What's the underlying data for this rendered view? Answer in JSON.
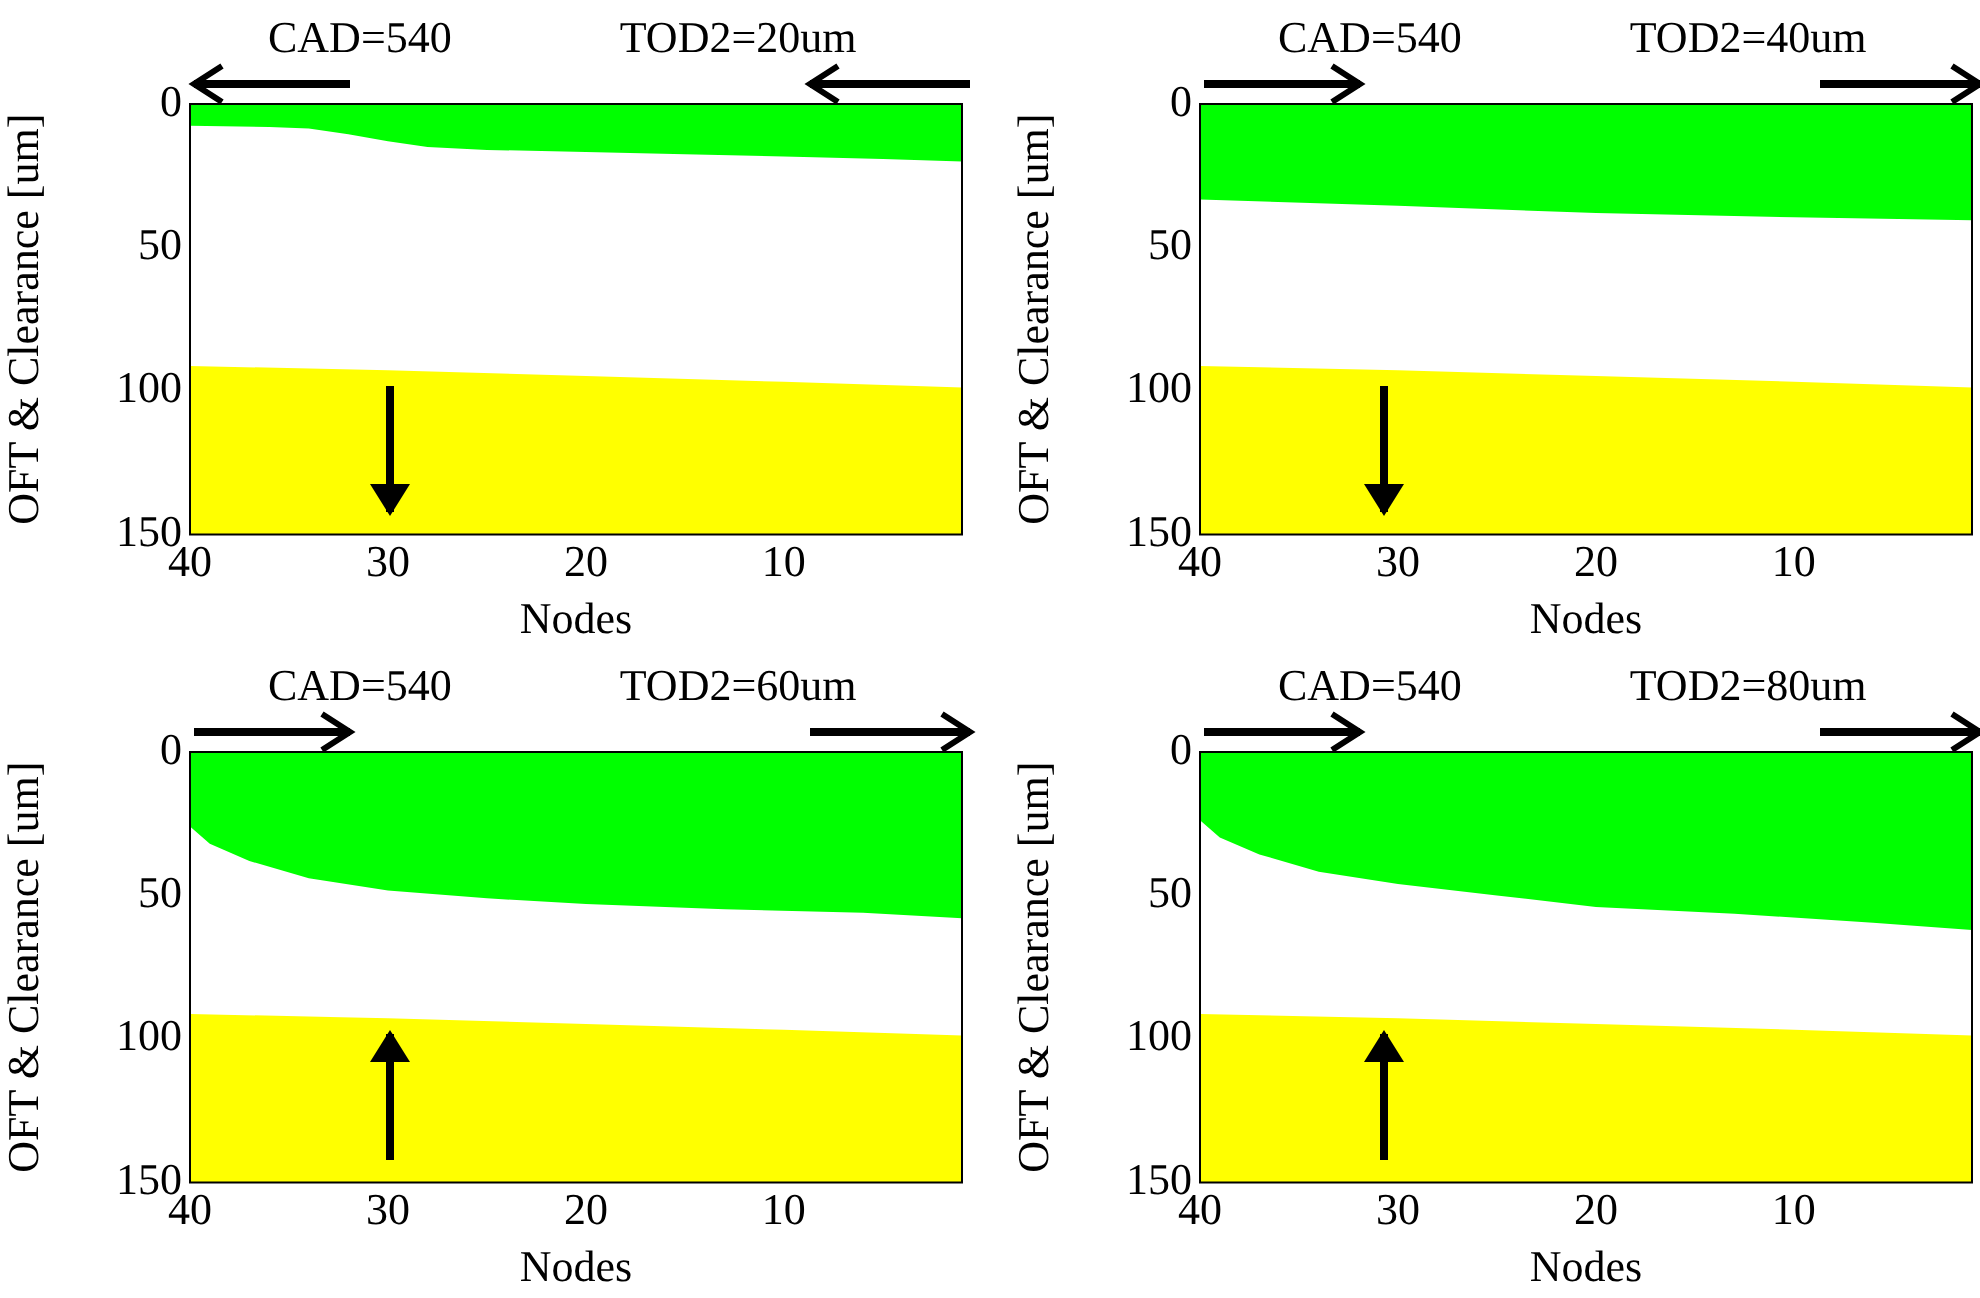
{
  "chart_data": [
    {
      "type": "area",
      "xlabel": "Nodes",
      "ylabel": "OFT & Clearance [um]",
      "annotations": [
        "CAD=540",
        "TOD2=20um"
      ],
      "xlim": [
        40,
        1
      ],
      "xticks": [
        40,
        30,
        20,
        10
      ],
      "ylim": [
        150,
        0
      ],
      "yticks": [
        0,
        50,
        100,
        150
      ],
      "series": [
        {
          "color": "#00ff00",
          "x": [
            40,
            36,
            34,
            32,
            30,
            28,
            25,
            20,
            15,
            10,
            5,
            1
          ],
          "values": [
            7.6,
            8,
            8.5,
            10.5,
            13,
            15,
            16,
            16.7,
            17.5,
            18.3,
            19.2,
            20
          ]
        },
        {
          "type": "line",
          "color": "#ffff00",
          "x": [
            40,
            30,
            20,
            10,
            1
          ],
          "values": [
            92,
            93.5,
            95.5,
            97.5,
            99.5
          ],
          "lower": [
            92,
            93.5,
            95.5,
            97.5,
            99.5
          ],
          "upper": [
            150,
            150,
            150,
            150,
            150
          ]
        }
      ]
    },
    {
      "type": "area",
      "xlabel": "Nodes",
      "ylabel": "OFT & Clearance [um]",
      "annotations": [
        "CAD=540",
        "TOD2=40um"
      ],
      "xlim": [
        40,
        1
      ],
      "xticks": [
        40,
        30,
        20,
        10
      ],
      "ylim": [
        150,
        0
      ],
      "yticks": [
        0,
        50,
        100,
        150
      ],
      "series": [
        {
          "color": "#00ff00",
          "x": [
            40,
            30,
            20,
            10,
            1
          ],
          "values": [
            33.3,
            35.5,
            38,
            39.5,
            40.5
          ]
        },
        {
          "type": "line",
          "color": "#ffff00",
          "x": [
            40,
            30,
            20,
            10,
            1
          ],
          "values": [
            92,
            93.5,
            95.5,
            97.5,
            99.5
          ],
          "lower": [
            92,
            93.5,
            95.5,
            97.5,
            99.5
          ],
          "upper": [
            150,
            150,
            150,
            150,
            150
          ]
        }
      ]
    },
    {
      "type": "area",
      "xlabel": "Nodes",
      "ylabel": "OFT & Clearance [um]",
      "annotations": [
        "CAD=540",
        "TOD2=60um"
      ],
      "xlim": [
        40,
        1
      ],
      "xticks": [
        40,
        30,
        20,
        10
      ],
      "ylim": [
        150,
        0
      ],
      "yticks": [
        0,
        50,
        100,
        150
      ],
      "series": [
        {
          "color": "#00ff00",
          "x": [
            40,
            39,
            37,
            34,
            30,
            25,
            20,
            13,
            6,
            1
          ],
          "values": [
            26,
            32,
            38,
            44,
            48.3,
            51,
            53,
            54.8,
            56,
            57.9
          ]
        },
        {
          "type": "line",
          "color": "#ffff00",
          "x": [
            40,
            30,
            20,
            10,
            1
          ],
          "values": [
            92,
            93.5,
            95.5,
            97.5,
            99.5
          ],
          "lower": [
            92,
            93.5,
            95.5,
            97.5,
            99.5
          ],
          "upper": [
            150,
            150,
            150,
            150,
            150
          ]
        }
      ]
    },
    {
      "type": "area",
      "xlabel": "Nodes",
      "ylabel": "OFT & Clearance [um]",
      "annotations": [
        "CAD=540",
        "TOD2=80um"
      ],
      "xlim": [
        40,
        1
      ],
      "xticks": [
        40,
        30,
        20,
        10
      ],
      "ylim": [
        150,
        0
      ],
      "yticks": [
        0,
        50,
        100,
        150
      ],
      "series": [
        {
          "color": "#00ff00",
          "x": [
            40,
            39,
            37,
            34,
            30,
            25,
            20,
            13,
            6,
            1
          ],
          "values": [
            23.8,
            29.8,
            35.7,
            41.7,
            46,
            50,
            54,
            56.4,
            59.5,
            62
          ]
        },
        {
          "type": "line",
          "color": "#ffff00",
          "x": [
            40,
            30,
            20,
            10,
            1
          ],
          "values": [
            92,
            93.5,
            95.5,
            97.5,
            99.5
          ],
          "lower": [
            92,
            93.5,
            95.5,
            97.5,
            99.5
          ],
          "upper": [
            150,
            150,
            150,
            150,
            150
          ]
        }
      ]
    }
  ]
}
